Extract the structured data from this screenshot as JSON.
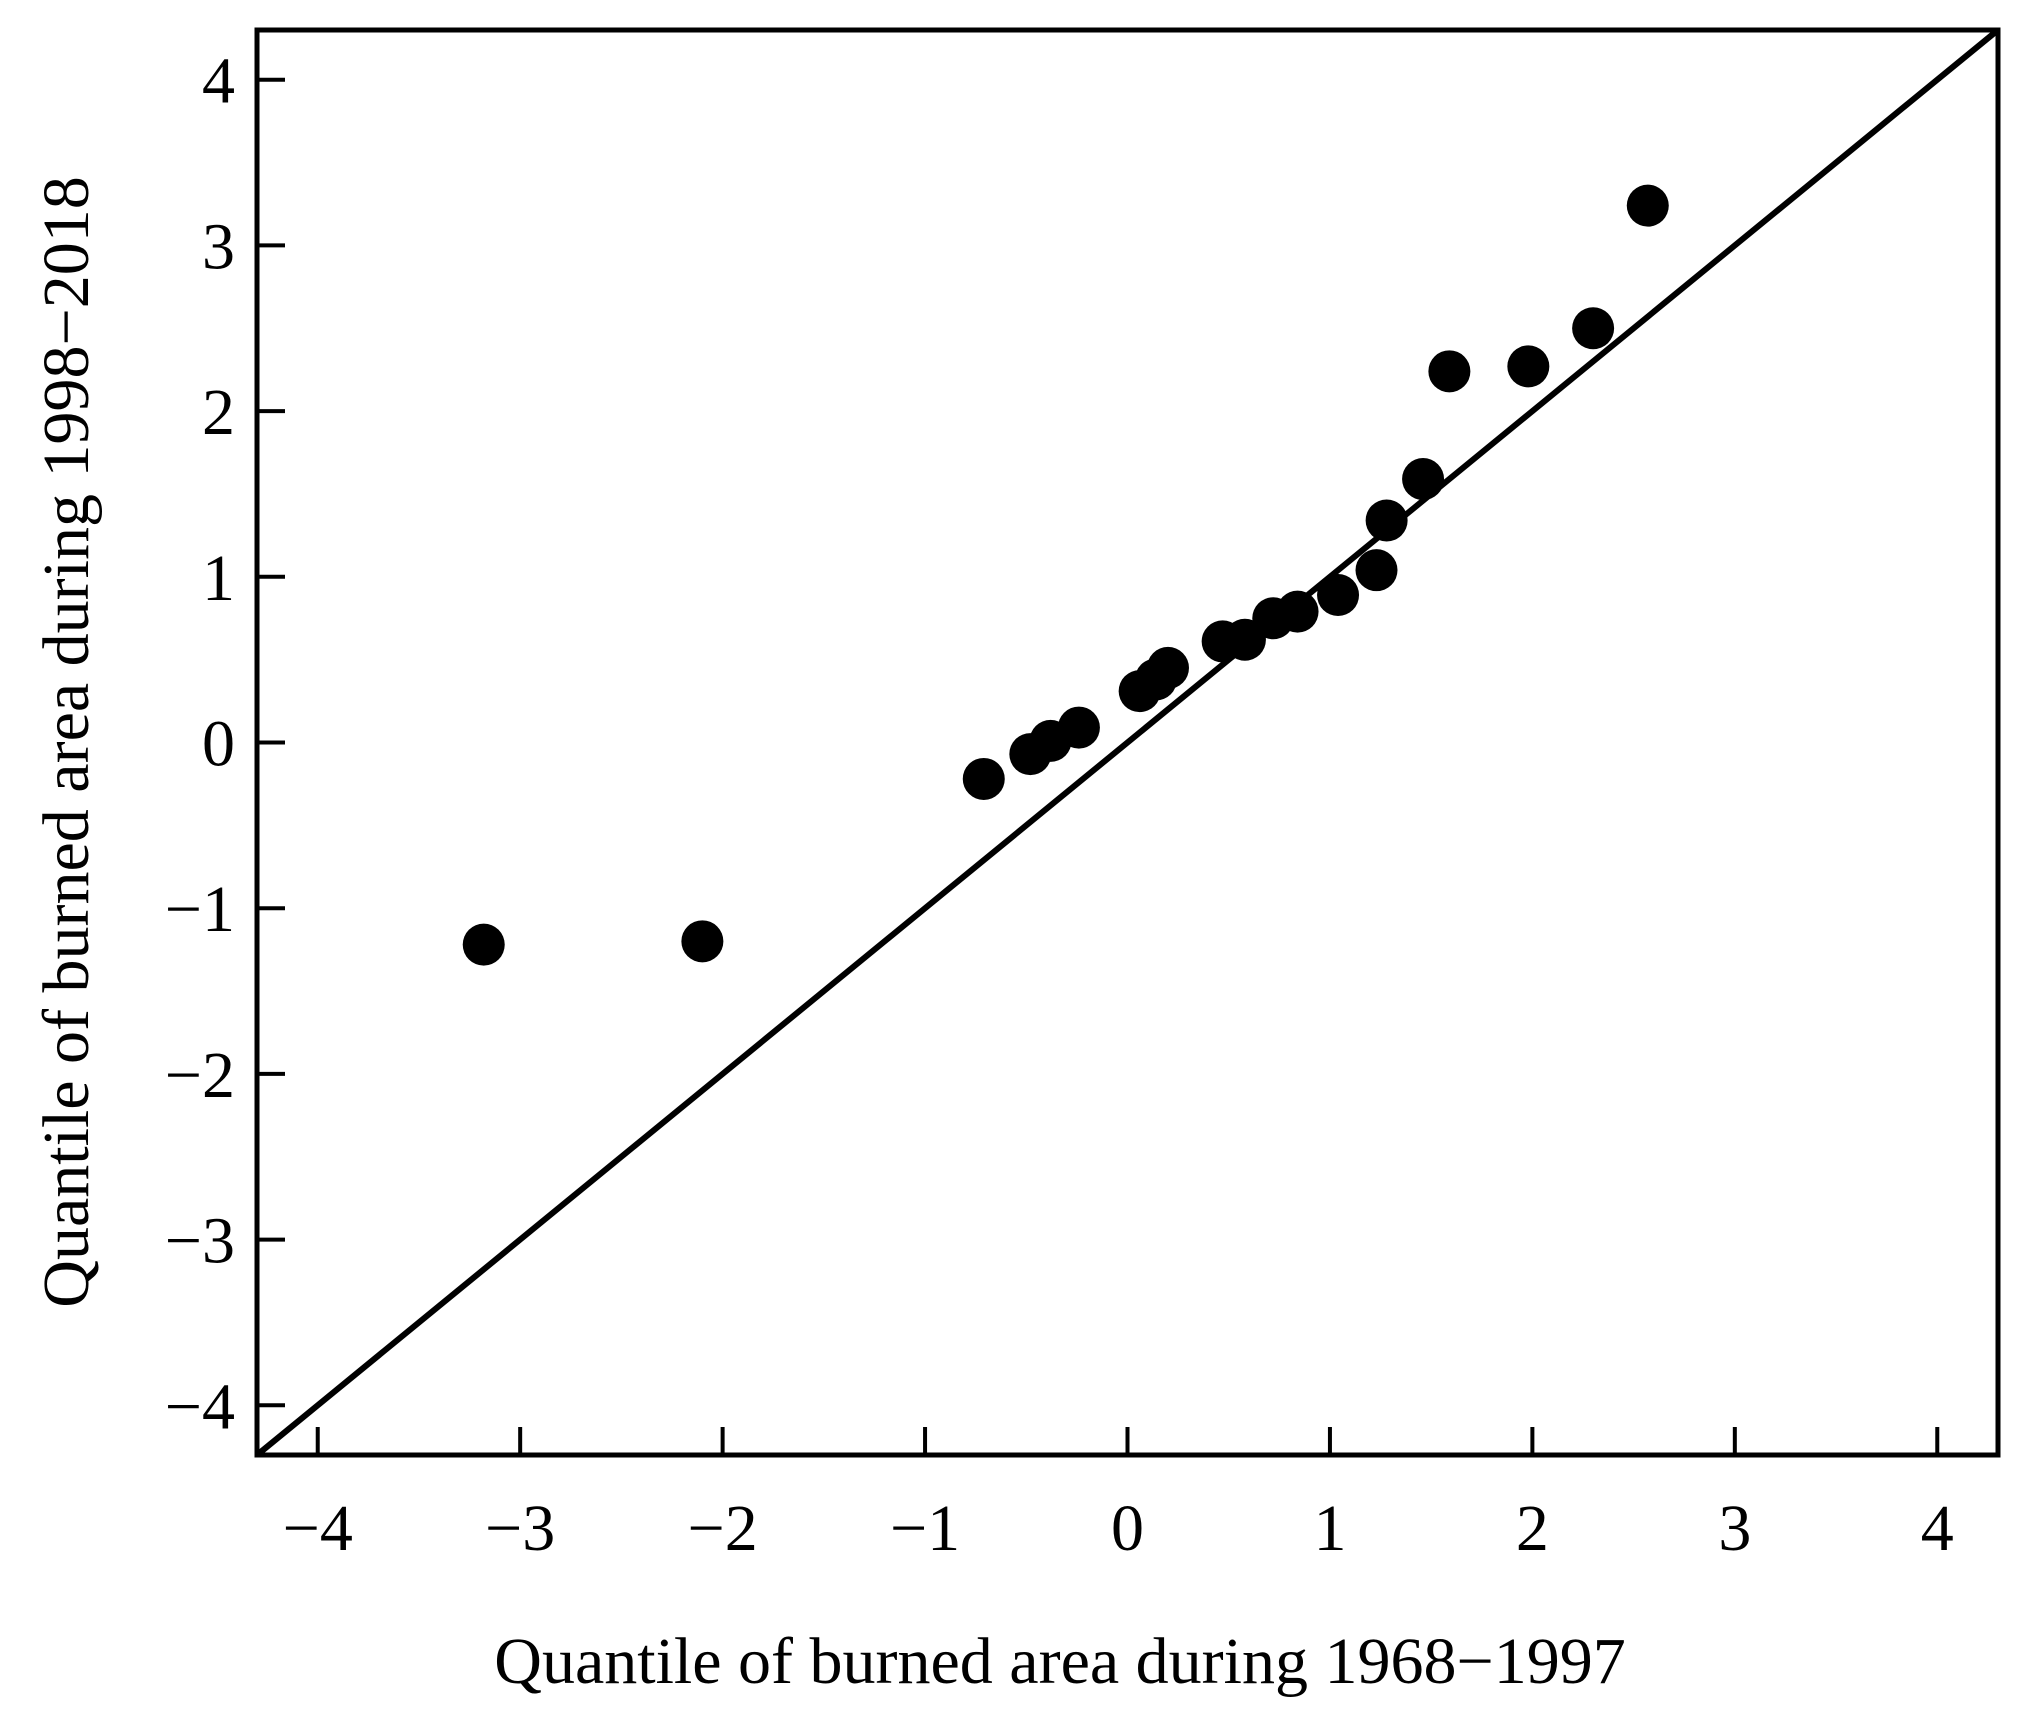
{
  "chart_data": {
    "type": "scatter",
    "title": "",
    "xlabel": "Quantile of burned area during 1968−1997",
    "ylabel": "Quantile of burned area during 1998−2018",
    "xlim": [
      -4.3,
      4.3
    ],
    "ylim": [
      -4.3,
      4.3
    ],
    "xticks": [
      -4,
      -3,
      -2,
      -1,
      0,
      1,
      2,
      3,
      4
    ],
    "yticks": [
      -4,
      -3,
      -2,
      -1,
      0,
      1,
      2,
      3,
      4
    ],
    "xtick_labels": [
      "−4",
      "−3",
      "−2",
      "−1",
      "0",
      "1",
      "2",
      "3",
      "4"
    ],
    "ytick_labels": [
      "−4",
      "−3",
      "−2",
      "−1",
      "0",
      "1",
      "2",
      "3",
      "4"
    ],
    "grid": false,
    "reference_line": {
      "x": [
        -4.3,
        4.3
      ],
      "y": [
        -4.3,
        4.3
      ]
    },
    "points": {
      "x": [
        -3.18,
        -2.1,
        -0.71,
        -0.48,
        -0.38,
        -0.24,
        0.06,
        0.14,
        0.2,
        0.47,
        0.58,
        0.72,
        0.84,
        1.04,
        1.23,
        1.28,
        1.46,
        1.59,
        1.98,
        2.3,
        2.57
      ],
      "y": [
        -1.22,
        -1.2,
        -0.22,
        -0.07,
        0.01,
        0.09,
        0.31,
        0.38,
        0.45,
        0.61,
        0.62,
        0.75,
        0.79,
        0.89,
        1.04,
        1.34,
        1.59,
        2.24,
        2.27,
        2.5,
        3.24
      ]
    }
  }
}
